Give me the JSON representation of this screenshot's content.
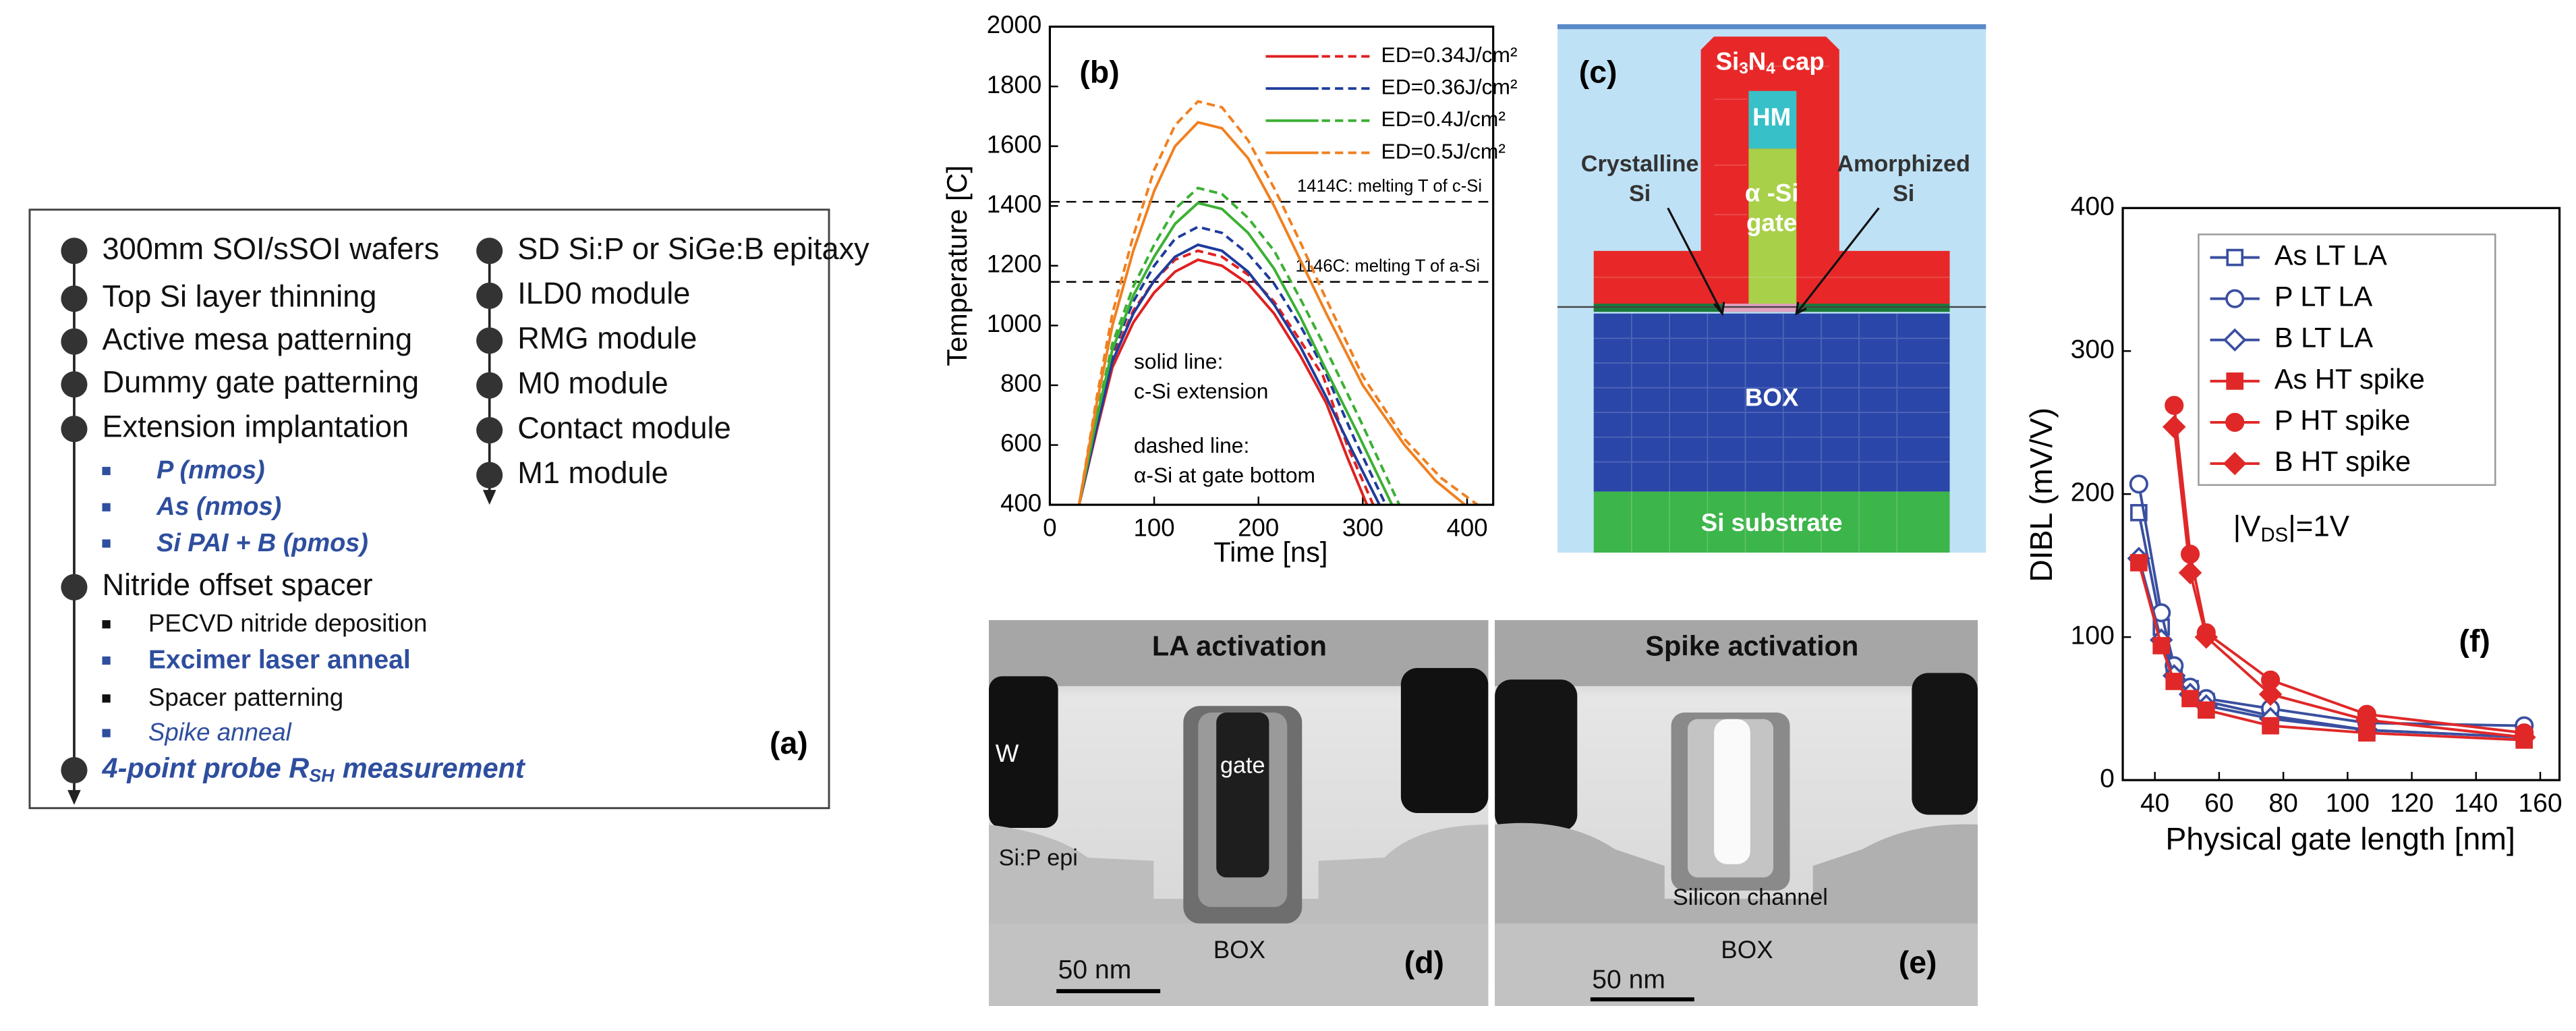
{
  "process_flow": {
    "left": [
      "300mm SOI/sSOI wafers",
      "Top Si layer thinning",
      "Active mesa patterning",
      "Dummy gate patterning",
      "Extension implantation",
      "P (nmos)",
      "As (nmos)",
      "Si PAI + B (pmos)",
      "Nitride offset spacer",
      "PECVD nitride deposition",
      "Excimer laser anneal",
      "Spacer patterning",
      "Spike anneal"
    ],
    "final_step": [
      "4-point probe R",
      "SH",
      "measurement"
    ],
    "right": [
      "SD Si:P or SiGe:B epitaxy",
      "ILD0 module",
      "RMG module",
      "M0 module",
      "Contact module",
      "M1 module"
    ],
    "label": "(a)"
  },
  "chart_data": [
    {
      "type": "line",
      "label": "(b)",
      "xlabel": "Time [ns]",
      "ylabel": "Temperature [C]",
      "xlim": [
        0,
        425
      ],
      "ylim": [
        400,
        2000
      ],
      "xticks": [
        0,
        100,
        200,
        300,
        400
      ],
      "yticks": [
        400,
        600,
        800,
        1000,
        1200,
        1400,
        1600,
        1800,
        2000
      ],
      "reference_lines": [
        {
          "value": 1414,
          "label": "1414C: melting T of c-Si"
        },
        {
          "value": 1146,
          "label": "1146C: melting T of a-Si"
        }
      ],
      "annotations": [
        "solid line:",
        "c-Si extension",
        "dashed line:",
        "α-Si at gate bottom"
      ],
      "series": [
        {
          "name": "ED=0.34J/cm²",
          "color": "#e02020",
          "x": [
            28,
            45,
            60,
            80,
            100,
            120,
            142,
            165,
            190,
            215,
            240,
            265,
            285,
            304
          ],
          "values": [
            400,
            650,
            860,
            1010,
            1110,
            1180,
            1220,
            1200,
            1140,
            1040,
            900,
            740,
            560,
            400
          ],
          "dashed_x": [
            28,
            45,
            60,
            80,
            100,
            120,
            142,
            165,
            190,
            215,
            240,
            262,
            285,
            310
          ],
          "dashed_values": [
            400,
            670,
            890,
            1050,
            1150,
            1220,
            1250,
            1230,
            1170,
            1080,
            950,
            830,
            600,
            400
          ]
        },
        {
          "name": "ED=0.36J/cm²",
          "color": "#1f3c9c",
          "x": [
            28,
            45,
            60,
            80,
            100,
            120,
            142,
            165,
            190,
            215,
            240,
            265,
            290,
            316
          ],
          "values": [
            400,
            660,
            880,
            1040,
            1150,
            1230,
            1270,
            1250,
            1180,
            1070,
            930,
            760,
            580,
            400
          ],
          "dashed_x": [
            28,
            45,
            60,
            80,
            100,
            120,
            142,
            165,
            190,
            215,
            240,
            262,
            292,
            322
          ],
          "dashed_values": [
            400,
            680,
            910,
            1080,
            1200,
            1290,
            1330,
            1310,
            1240,
            1140,
            1000,
            860,
            620,
            400
          ]
        },
        {
          "name": "ED=0.4J/cm²",
          "color": "#3cb034",
          "x": [
            28,
            45,
            60,
            80,
            100,
            120,
            142,
            165,
            190,
            215,
            240,
            265,
            295,
            328
          ],
          "values": [
            400,
            690,
            920,
            1100,
            1230,
            1340,
            1410,
            1390,
            1310,
            1190,
            1030,
            850,
            640,
            400
          ],
          "dashed_x": [
            28,
            45,
            60,
            80,
            100,
            120,
            142,
            165,
            190,
            215,
            240,
            262,
            298,
            335
          ],
          "dashed_values": [
            400,
            700,
            940,
            1130,
            1270,
            1390,
            1460,
            1440,
            1360,
            1250,
            1090,
            940,
            680,
            400
          ]
        },
        {
          "name": "ED=0.5J/cm²",
          "color": "#f08020",
          "x": [
            28,
            45,
            60,
            80,
            100,
            120,
            142,
            165,
            190,
            215,
            240,
            265,
            300,
            340,
            370,
            398
          ],
          "values": [
            400,
            740,
            1000,
            1250,
            1450,
            1600,
            1680,
            1660,
            1560,
            1400,
            1220,
            1040,
            800,
            600,
            480,
            400
          ],
          "dashed_x": [
            28,
            45,
            60,
            80,
            100,
            120,
            142,
            165,
            190,
            215,
            240,
            262,
            300,
            340,
            375,
            410
          ],
          "dashed_values": [
            400,
            760,
            1040,
            1300,
            1520,
            1670,
            1750,
            1730,
            1620,
            1460,
            1280,
            1110,
            830,
            620,
            490,
            400
          ]
        }
      ]
    },
    {
      "type": "line",
      "label": "(f)",
      "xlabel": "Physical gate length [nm]",
      "ylabel": "DIBL (mV/V)",
      "xlim": [
        30,
        166
      ],
      "ylim": [
        0,
        400
      ],
      "xticks": [
        40,
        60,
        80,
        100,
        120,
        140,
        160
      ],
      "yticks": [
        0,
        100,
        200,
        300,
        400
      ],
      "annotation": [
        "|V",
        "DS",
        "|=1V"
      ],
      "series": [
        {
          "name": "As LT LA",
          "color": "#3a4fa0",
          "marker": "square",
          "filled": false,
          "x": [
            35,
            42,
            46,
            51,
            56,
            76,
            106,
            155
          ],
          "values": [
            187,
            107,
            76,
            64,
            55,
            45,
            35,
            30
          ]
        },
        {
          "name": "P LT LA",
          "color": "#3a4fa0",
          "marker": "circle",
          "filled": false,
          "x": [
            35,
            42,
            46,
            51,
            56,
            76,
            106,
            155
          ],
          "values": [
            207,
            117,
            80,
            65,
            57,
            50,
            40,
            38
          ]
        },
        {
          "name": "B LT LA",
          "color": "#3a4fa0",
          "marker": "diamond",
          "filled": false,
          "x": [
            35,
            42,
            46,
            51,
            56,
            76,
            106,
            155
          ],
          "values": [
            155,
            98,
            73,
            60,
            52,
            43,
            35,
            30
          ]
        },
        {
          "name": "As HT spike",
          "color": "#e02828",
          "marker": "square",
          "filled": true,
          "x": [
            35,
            42,
            46,
            51,
            56,
            76,
            106,
            155
          ],
          "values": [
            152,
            94,
            69,
            57,
            49,
            38,
            33,
            28
          ]
        },
        {
          "name": "P HT spike",
          "color": "#e02828",
          "marker": "circle",
          "filled": true,
          "x": [
            46,
            51,
            56,
            76,
            106,
            155
          ],
          "values": [
            262,
            158,
            103,
            70,
            46,
            33
          ]
        },
        {
          "name": "B HT spike",
          "color": "#e02828",
          "marker": "diamond",
          "filled": true,
          "x": [
            46,
            51,
            56,
            76,
            106,
            155
          ],
          "values": [
            247,
            145,
            100,
            60,
            42,
            30
          ]
        }
      ]
    }
  ],
  "cross_section": {
    "cap": [
      "Si",
      "3",
      "N",
      "4",
      "cap"
    ],
    "hard_mask": "HM",
    "gate": [
      "α -Si",
      "gate"
    ],
    "crystalline": [
      "Crystalline",
      "Si"
    ],
    "amorphized": [
      "Amorphized",
      "Si"
    ],
    "box": "BOX",
    "substrate": "Si substrate",
    "label": "(c)"
  },
  "tem": [
    {
      "title": "LA activation",
      "metal": "W",
      "gate": "gate",
      "epi": "Si:P epi",
      "scale": "50 nm",
      "box": "BOX",
      "label": "(d)"
    },
    {
      "title": "Spike activation",
      "channel": "Silicon channel",
      "scale": "50 nm",
      "box": "BOX",
      "label": "(e)"
    }
  ]
}
